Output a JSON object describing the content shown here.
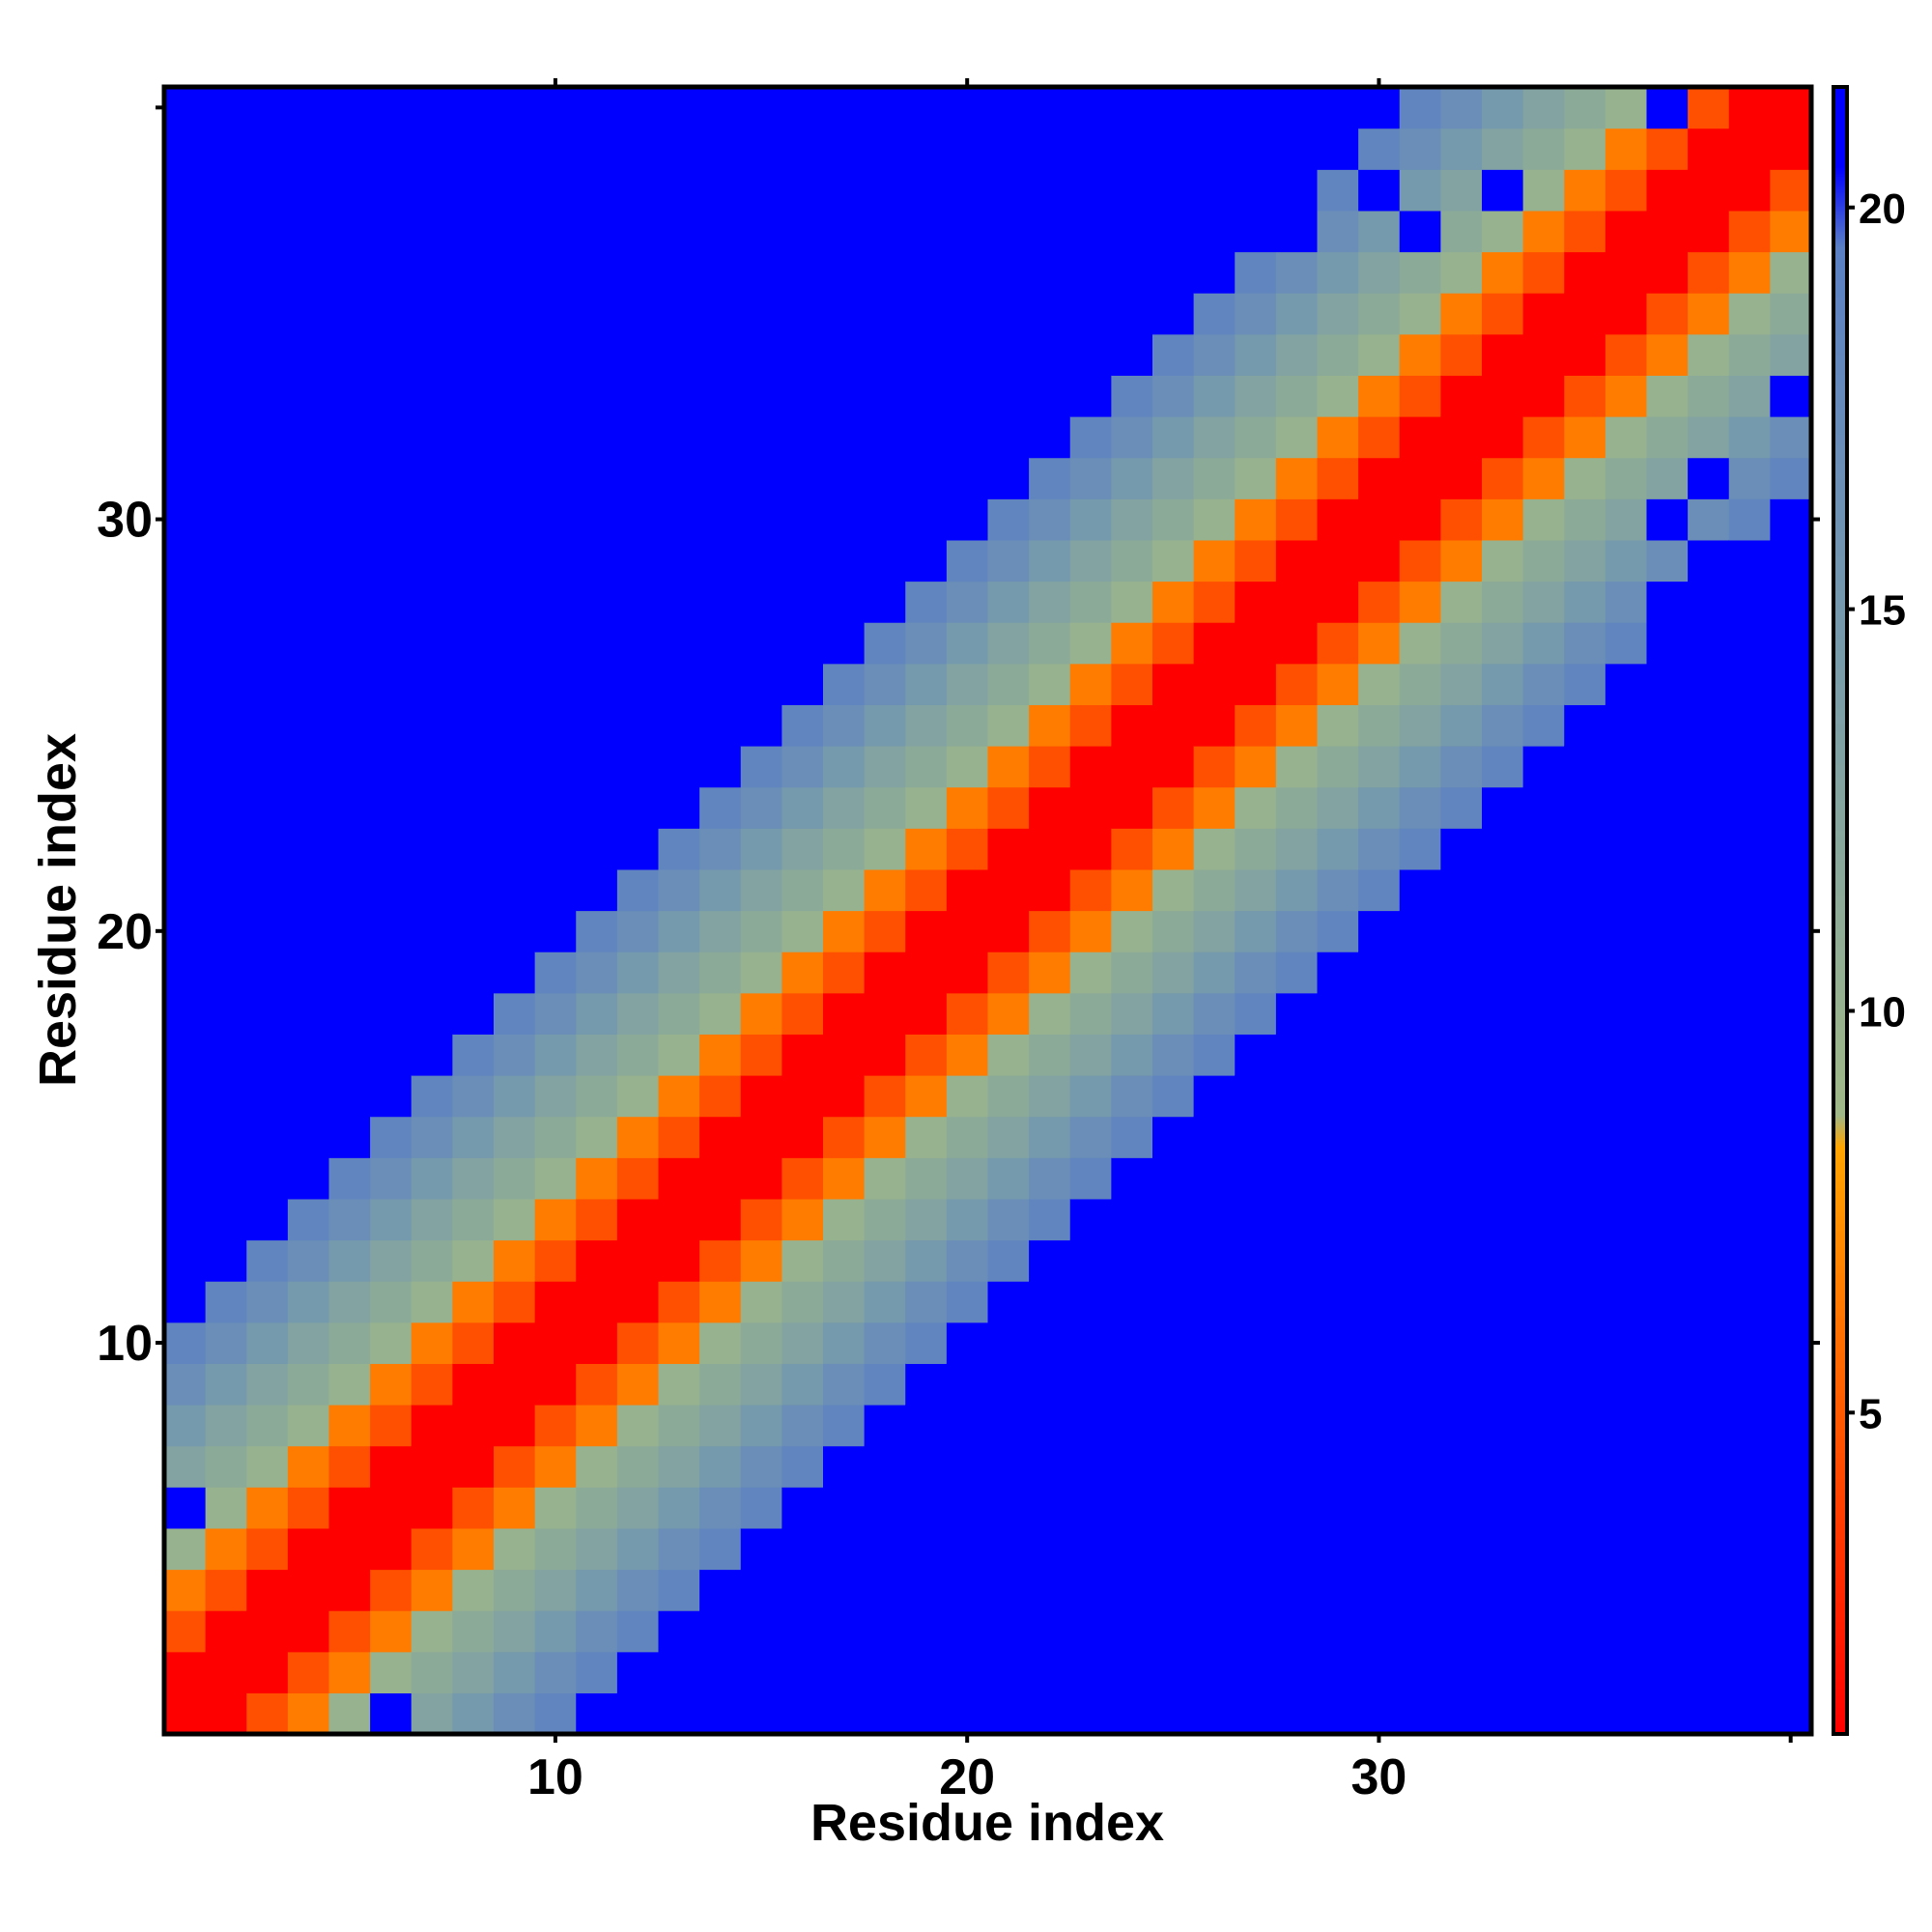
{
  "chart_data": {
    "type": "heatmap",
    "title": "",
    "xlabel": "Residue index",
    "ylabel": "Residue index",
    "x_ticks": [
      10,
      20,
      30
    ],
    "y_ticks": [
      10,
      20,
      30
    ],
    "n_residues": 40,
    "xlim": [
      0.5,
      40.5
    ],
    "ylim": [
      0.5,
      40.5
    ],
    "grid": false,
    "legend": "colorbar-right",
    "colorbar": {
      "range": [
        1,
        21.5
      ],
      "ticks": [
        5,
        10,
        15,
        20
      ],
      "stops": [
        {
          "value": 1,
          "color": "#ff0000"
        },
        {
          "value": 5,
          "color": "#ff5a00"
        },
        {
          "value": 8.3,
          "color": "#ffa500"
        },
        {
          "value": 8.7,
          "color": "#a0b887"
        },
        {
          "value": 14,
          "color": "#7b9ea8"
        },
        {
          "value": 19.5,
          "color": "#5b80c4"
        },
        {
          "value": 20.5,
          "color": "#0000ff"
        },
        {
          "value": 21.5,
          "color": "#0000ff"
        }
      ]
    },
    "values_rule": "value(i,j) = distance between residues i and j; diagonal band of low values, saturating to 21.5 (blue) off-diagonal",
    "band_values_by_offset": [
      1,
      1,
      4.5,
      6.5,
      10,
      11.5,
      13,
      15,
      17,
      18.5,
      21.5
    ],
    "anomalous_cells": [
      {
        "x": 6,
        "y": 1,
        "value": 21.5
      },
      {
        "x": 1,
        "y": 6,
        "value": 21.5
      },
      {
        "x": 37,
        "y": 40,
        "value": 21.5
      },
      {
        "x": 30,
        "y": 38,
        "value": 21.5
      },
      {
        "x": 33,
        "y": 38,
        "value": 21.5
      },
      {
        "x": 28,
        "y": 37,
        "value": 21.5
      },
      {
        "x": 31,
        "y": 37,
        "value": 21.5
      },
      {
        "x": 40,
        "y": 33,
        "value": 21.5
      },
      {
        "x": 38,
        "y": 31,
        "value": 21.5
      },
      {
        "x": 37,
        "y": 30,
        "value": 21.5
      },
      {
        "x": 38,
        "y": 29,
        "value": 21.5
      },
      {
        "x": 37,
        "y": 28,
        "value": 21.5
      }
    ]
  }
}
